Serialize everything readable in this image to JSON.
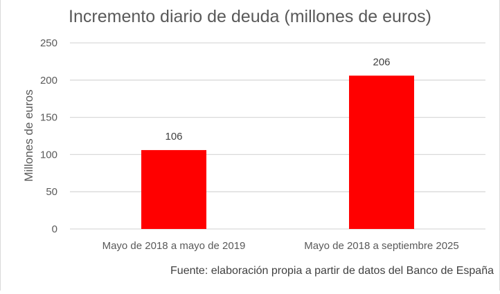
{
  "chart_data": {
    "type": "bar",
    "title": "Incremento diario de deuda (millones de euros)",
    "xlabel": "",
    "ylabel": "Millones de euros",
    "categories": [
      "Mayo de 2018 a mayo de 2019",
      "Mayo de 2018 a septiembre 2025"
    ],
    "values": [
      106,
      206
    ],
    "data_labels": [
      "106",
      "206"
    ],
    "ylim": [
      0,
      250
    ],
    "yticks": [
      "0",
      "50",
      "100",
      "150",
      "200",
      "250"
    ],
    "grid": true,
    "legend": "none",
    "bar_color": "#ff0000",
    "source": "Fuente: elaboración propia a partir de datos del Banco de España"
  }
}
